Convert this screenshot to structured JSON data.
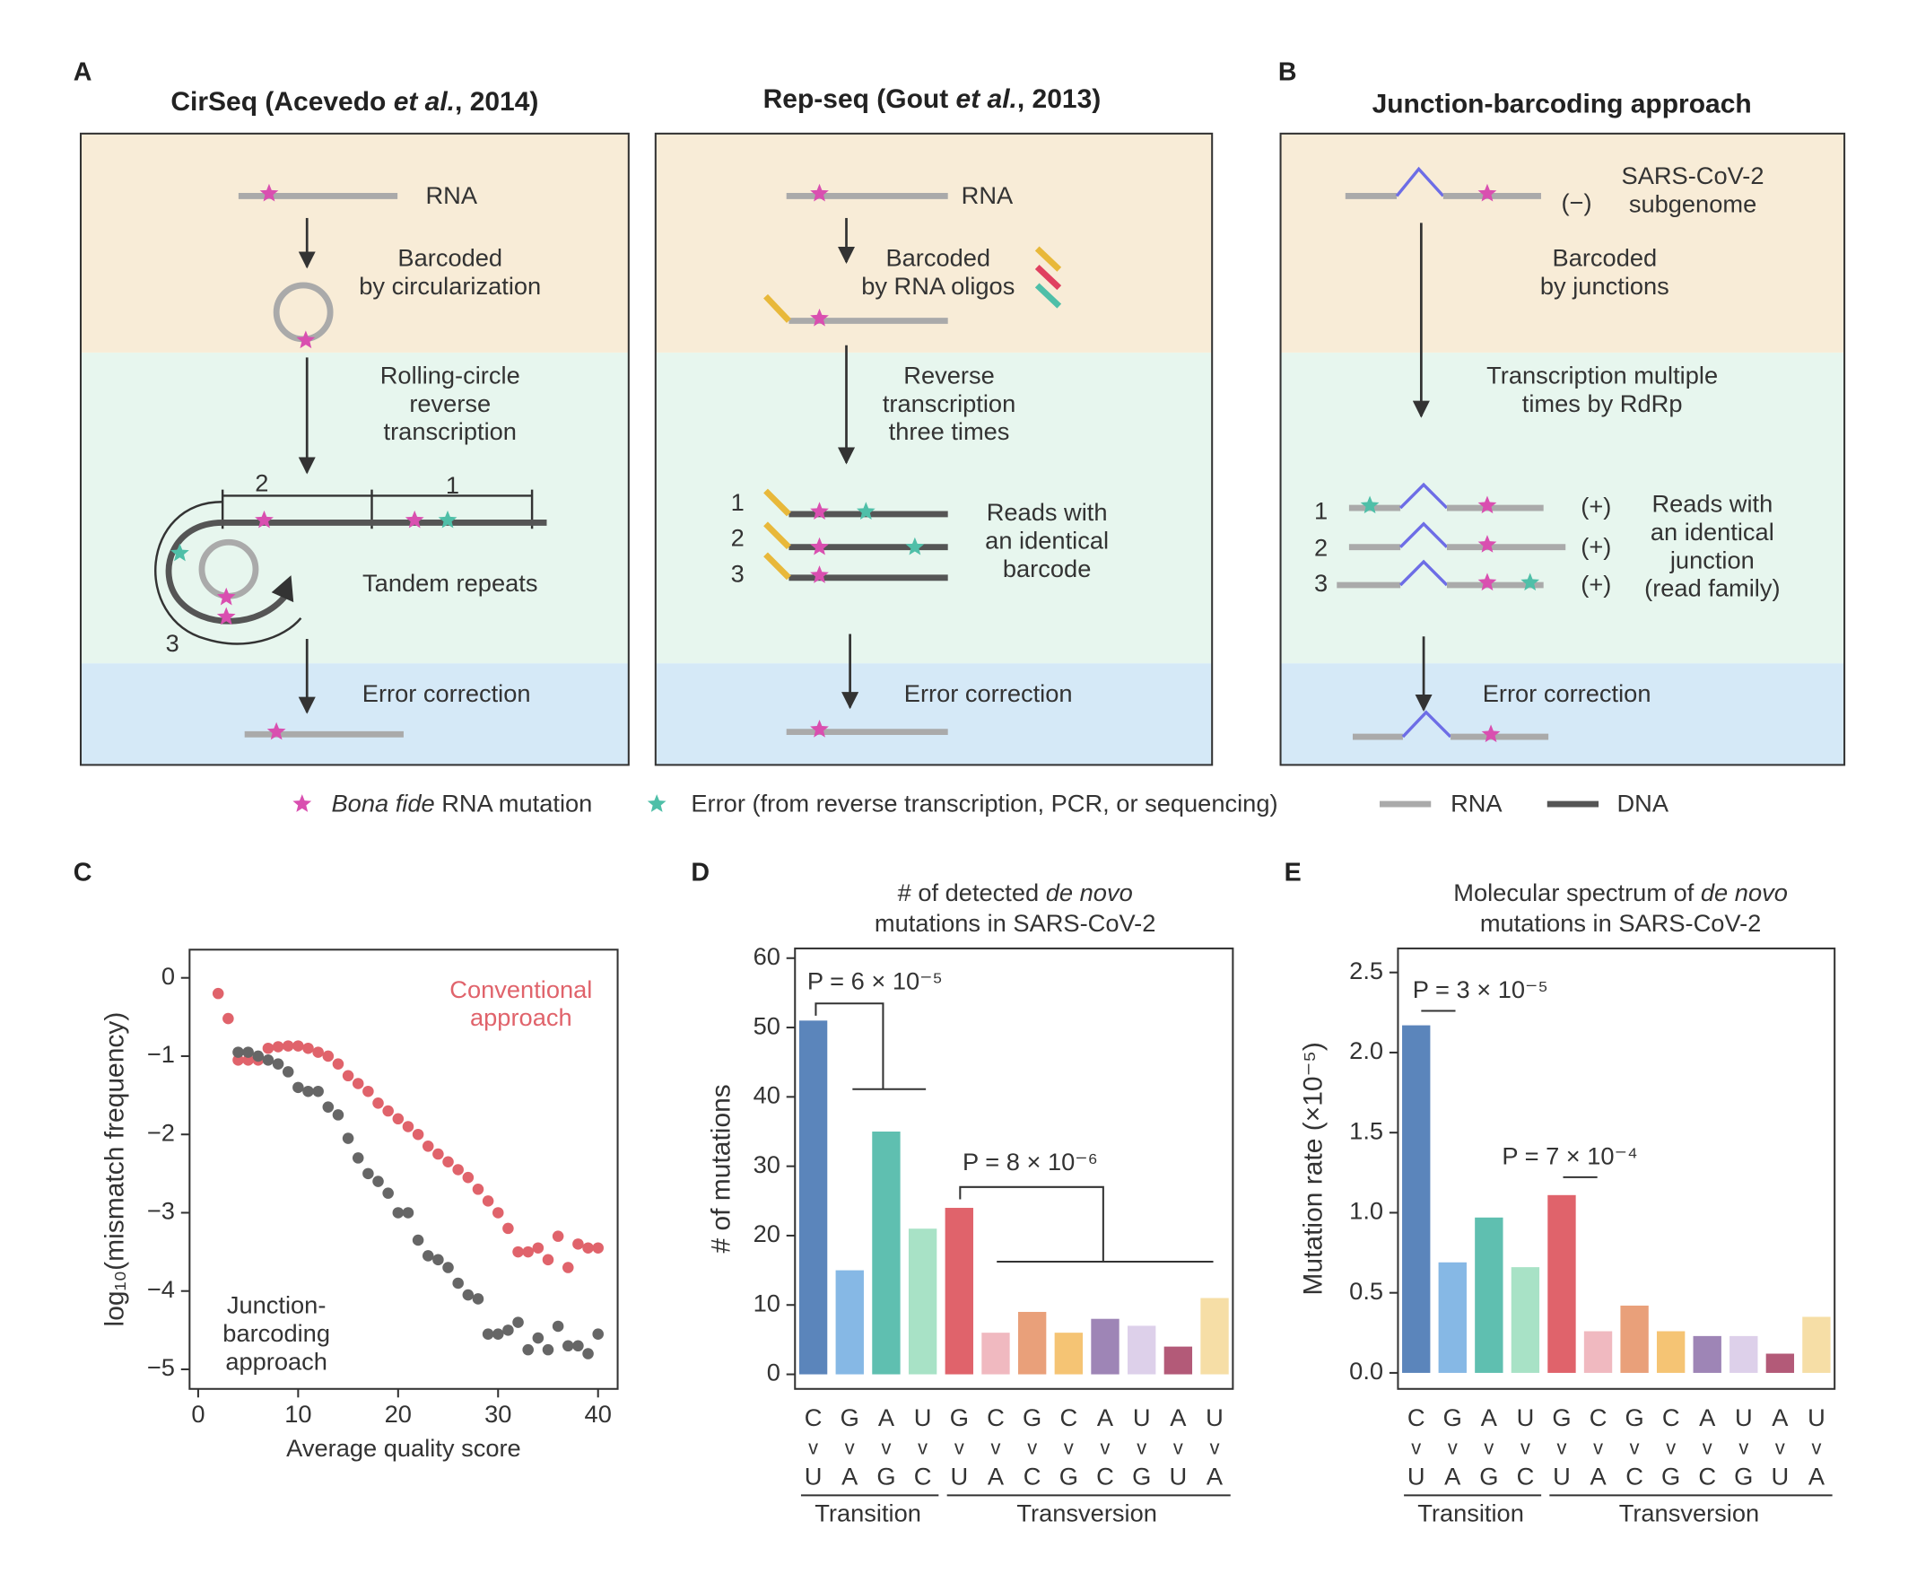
{
  "figure": {
    "panel_labels": [
      "A",
      "B",
      "C",
      "D",
      "E"
    ],
    "cirseq": {
      "header": [
        "CirSeq (Acevedo ",
        "et al.",
        ", 2014)"
      ],
      "rna": "RNA",
      "barcode": [
        "Barcoded",
        "by circularization"
      ],
      "rt": [
        "Rolling-circle",
        "reverse",
        "transcription"
      ],
      "repeat_numbers": [
        "2",
        "1",
        "3"
      ],
      "repeats": "Tandem repeats",
      "correction": "Error correction"
    },
    "repseq": {
      "header": [
        "Rep-seq (Gout ",
        "et al.",
        ", 2013)"
      ],
      "rna": "RNA",
      "barcode": [
        "Barcoded",
        "by RNA oligos"
      ],
      "rt": [
        "Reverse",
        "transcription",
        "three times"
      ],
      "read_numbers": [
        "1",
        "2",
        "3"
      ],
      "reads": [
        "Reads with",
        "an identical",
        "barcode"
      ],
      "correction": "Error correction"
    },
    "junction": {
      "header": "Junction-barcoding approach",
      "rna": [
        "SARS-CoV-2",
        "subgenome"
      ],
      "strand": "(−)",
      "barcode": [
        "Barcoded",
        "by junctions"
      ],
      "rt": [
        "Transcription multiple",
        "times by RdRp"
      ],
      "read_numbers": [
        "1",
        "2",
        "3"
      ],
      "read_strands": [
        "(+)",
        "(+)",
        "(+)"
      ],
      "reads": [
        "Reads with",
        "an identical",
        "junction",
        "(read family)"
      ],
      "correction": "Error correction"
    },
    "legend": {
      "mutation": [
        "Bona fide",
        " RNA mutation"
      ],
      "error": "Error (from reverse transcription, PCR, or sequencing)",
      "rna": "RNA",
      "dna": "DNA"
    }
  },
  "chart_data": [
    {
      "type": "scatter",
      "x_label": "Average quality score",
      "y_label": "log₁₀(mismatch frequency)",
      "xlim": [
        -0.86,
        41.96
      ],
      "ylim": [
        -5.25,
        0.36
      ],
      "xticks": [
        0,
        10,
        20,
        30,
        40
      ],
      "yticks": [
        0,
        {
          "value": -1,
          "label": "−1"
        },
        {
          "value": -2,
          "label": "−2"
        },
        {
          "value": -3,
          "label": "−3"
        },
        {
          "value": -4,
          "label": "−4"
        },
        {
          "value": -5,
          "label": "−5"
        }
      ],
      "annotations": [
        {
          "lines": [
            "Conventional",
            "approach"
          ],
          "color": "#e0636b"
        },
        {
          "lines": [
            "Junction-",
            "barcoding",
            "approach"
          ],
          "color": "#333333"
        }
      ],
      "series": [
        {
          "color": "#e0636b",
          "x": [
            2,
            3,
            4,
            5,
            6,
            7,
            8,
            9,
            10,
            11,
            12,
            13,
            14,
            15,
            16,
            17,
            18,
            19,
            20,
            21,
            22,
            23,
            24,
            25,
            26,
            27,
            28,
            29,
            30,
            31,
            32,
            33,
            34,
            35,
            36,
            37,
            38,
            39,
            40
          ],
          "values": [
            -0.2,
            -0.52,
            -1.05,
            -1.05,
            -1.05,
            -0.9,
            -0.88,
            -0.87,
            -0.87,
            -0.9,
            -0.95,
            -1.0,
            -1.1,
            -1.25,
            -1.35,
            -1.45,
            -1.6,
            -1.7,
            -1.8,
            -1.9,
            -2.0,
            -2.15,
            -2.25,
            -2.35,
            -2.45,
            -2.55,
            -2.7,
            -2.85,
            -3.0,
            -3.2,
            -3.5,
            -3.5,
            -3.45,
            -3.6,
            -3.3,
            -3.7,
            -3.4,
            -3.45,
            -3.45
          ]
        },
        {
          "color": "#666666",
          "x": [
            4,
            5,
            6,
            7,
            8,
            9,
            10,
            11,
            12,
            13,
            14,
            15,
            16,
            17,
            18,
            19,
            20,
            21,
            22,
            23,
            24,
            25,
            26,
            27,
            28,
            29,
            30,
            31,
            32,
            33,
            34,
            35,
            36,
            37,
            38,
            39,
            40
          ],
          "values": [
            -0.95,
            -0.95,
            -1.0,
            -1.05,
            -1.1,
            -1.2,
            -1.4,
            -1.45,
            -1.45,
            -1.65,
            -1.75,
            -2.05,
            -2.3,
            -2.5,
            -2.6,
            -2.75,
            -3.0,
            -3.0,
            -3.35,
            -3.55,
            -3.6,
            -3.7,
            -3.9,
            -4.05,
            -4.1,
            -4.55,
            -4.55,
            -4.5,
            -4.4,
            -4.75,
            -4.6,
            -4.75,
            -4.45,
            -4.7,
            -4.7,
            -4.8,
            -4.55
          ]
        }
      ]
    },
    {
      "type": "bar",
      "title_lines": [
        [
          "# of detected ",
          "de novo"
        ],
        [
          "mutations in SARS-CoV-2"
        ]
      ],
      "y_label": "# of mutations",
      "categories": [
        [
          "C",
          "v",
          "U"
        ],
        [
          "G",
          "v",
          "A"
        ],
        [
          "A",
          "v",
          "G"
        ],
        [
          "U",
          "v",
          "C"
        ],
        [
          "G",
          "v",
          "U"
        ],
        [
          "C",
          "v",
          "A"
        ],
        [
          "G",
          "v",
          "C"
        ],
        [
          "C",
          "v",
          "G"
        ],
        [
          "A",
          "v",
          "C"
        ],
        [
          "U",
          "v",
          "G"
        ],
        [
          "A",
          "v",
          "U"
        ],
        [
          "U",
          "v",
          "A"
        ]
      ],
      "groups": [
        "Transition",
        "Transversion"
      ],
      "values": [
        51,
        15,
        35,
        21,
        24,
        6,
        9,
        6,
        8,
        7,
        4,
        11
      ],
      "colors": [
        "#5b85bb",
        "#86b8e5",
        "#5fbfb0",
        "#a8e2c6",
        "#e0636b",
        "#f0b9c0",
        "#e9a07a",
        "#f5c474",
        "#9e85b6",
        "#ddd0ea",
        "#b35a78",
        "#f6dea6"
      ],
      "ylim": [
        -2.1,
        61.4
      ],
      "yticks": [
        0,
        10,
        20,
        30,
        40,
        50,
        60
      ],
      "annotations": [
        "P = 6 × 10⁻⁵",
        "P = 8 × 10⁻⁶"
      ]
    },
    {
      "type": "bar",
      "title_lines": [
        [
          "Molecular spectrum of ",
          "de novo"
        ],
        [
          "mutations in SARS-CoV-2"
        ]
      ],
      "y_label": "Mutation rate (×10⁻⁵)",
      "categories": [
        [
          "C",
          "v",
          "U"
        ],
        [
          "G",
          "v",
          "A"
        ],
        [
          "A",
          "v",
          "G"
        ],
        [
          "U",
          "v",
          "C"
        ],
        [
          "G",
          "v",
          "U"
        ],
        [
          "C",
          "v",
          "A"
        ],
        [
          "G",
          "v",
          "C"
        ],
        [
          "C",
          "v",
          "G"
        ],
        [
          "A",
          "v",
          "C"
        ],
        [
          "U",
          "v",
          "G"
        ],
        [
          "A",
          "v",
          "U"
        ],
        [
          "U",
          "v",
          "A"
        ]
      ],
      "groups": [
        "Transition",
        "Transversion"
      ],
      "values": [
        2.17,
        0.69,
        0.97,
        0.66,
        1.11,
        0.26,
        0.42,
        0.26,
        0.23,
        0.23,
        0.12,
        0.35
      ],
      "colors": [
        "#5b85bb",
        "#86b8e5",
        "#5fbfb0",
        "#a8e2c6",
        "#e0636b",
        "#f0b9c0",
        "#e9a07a",
        "#f5c474",
        "#9e85b6",
        "#ddd0ea",
        "#b35a78",
        "#f6dea6"
      ],
      "ylim": [
        -0.1,
        2.65
      ],
      "yticks": [
        {
          "value": 0,
          "label": "0.0"
        },
        0.5,
        {
          "value": 1,
          "label": "1.0"
        },
        1.5,
        {
          "value": 2,
          "label": "2.0"
        },
        2.5
      ],
      "annotations": [
        "P = 3 × 10⁻⁵",
        "P = 7 × 10⁻⁴"
      ]
    }
  ]
}
